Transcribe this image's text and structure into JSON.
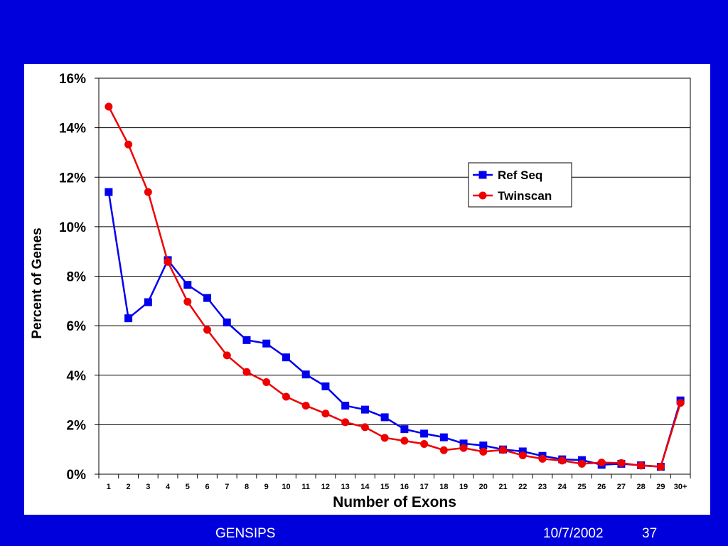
{
  "footer": {
    "left": "GENSIPS",
    "date": "10/7/2002",
    "page": "37"
  },
  "chart_data": {
    "type": "line",
    "xlabel": "Number of Exons",
    "ylabel": "Percent of Genes",
    "categories": [
      "1",
      "2",
      "3",
      "4",
      "5",
      "6",
      "7",
      "8",
      "9",
      "10",
      "11",
      "12",
      "13",
      "14",
      "15",
      "16",
      "17",
      "18",
      "19",
      "20",
      "21",
      "22",
      "23",
      "24",
      "25",
      "26",
      "27",
      "28",
      "29",
      "30+"
    ],
    "yticks": [
      "0%",
      "2%",
      "4%",
      "6%",
      "8%",
      "10%",
      "12%",
      "14%",
      "16%"
    ],
    "ylim": [
      0,
      16
    ],
    "grid": true,
    "legend_position": "right",
    "series": [
      {
        "name": "Ref Seq",
        "color": "#0000ee",
        "marker": "square",
        "values": [
          11.4,
          6.3,
          6.95,
          8.65,
          7.65,
          7.12,
          6.13,
          5.42,
          5.28,
          4.72,
          4.03,
          3.55,
          2.77,
          2.61,
          2.3,
          1.82,
          1.64,
          1.49,
          1.24,
          1.16,
          1.0,
          0.92,
          0.74,
          0.6,
          0.57,
          0.38,
          0.42,
          0.36,
          0.3,
          2.98
        ]
      },
      {
        "name": "Twinscan",
        "color": "#ee0000",
        "marker": "circle",
        "values": [
          14.85,
          13.32,
          11.4,
          8.58,
          6.97,
          5.83,
          4.8,
          4.13,
          3.72,
          3.13,
          2.77,
          2.45,
          2.1,
          1.9,
          1.47,
          1.35,
          1.22,
          0.97,
          1.06,
          0.91,
          0.98,
          0.76,
          0.62,
          0.55,
          0.42,
          0.47,
          0.45,
          0.35,
          0.3,
          2.88
        ]
      }
    ]
  }
}
